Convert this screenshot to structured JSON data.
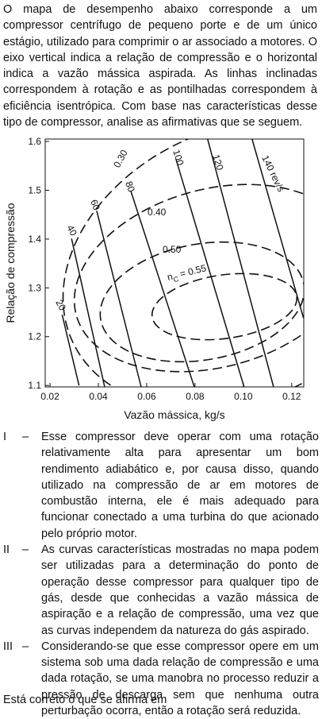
{
  "intro": "O mapa de desempenho abaixo corresponde a um compressor centrífugo de pequeno porte e de um único estágio, utilizado para comprimir o ar associado a motores. O eixo vertical indica a relação de compressão e o horizontal indica a vazão mássica aspirada. As linhas inclinadas correspondem à rotação e as pontilhadas correspondem à eficiência isentrópica. Com base nas características desse tipo de compressor, analise as afirmativas que se seguem.",
  "figure": {
    "x_label": "Vazão mássica, kg/s",
    "y_label": "Relação de compressão",
    "xlim": [
      0.018,
      0.125
    ],
    "ylim": [
      1.097,
      1.605
    ],
    "xticks": [
      0.02,
      0.04,
      0.06,
      0.08,
      {
        "value": 0.1,
        "label": "0.10"
      },
      0.12
    ],
    "yticks": [
      1.1,
      1.2,
      1.3,
      1.4,
      1.5,
      1.6
    ],
    "speed_lines": [
      {
        "label": "20",
        "x": [
          0.025,
          0.032
        ],
        "y": [
          1.245,
          1.1
        ]
      },
      {
        "label": "40",
        "x": [
          0.0289,
          0.0426
        ],
        "y": [
          1.401,
          1.097
        ]
      },
      {
        "label": "60",
        "x": [
          0.0393,
          0.0577
        ],
        "y": [
          1.458,
          1.097
        ]
      },
      {
        "label": "80",
        "x": [
          0.0534,
          0.0797
        ],
        "y": [
          1.499,
          1.097
        ]
      },
      {
        "label": "100",
        "x": [
          0.0721,
          0.1003
        ],
        "y": [
          1.564,
          1.097
        ]
      },
      {
        "label": "120",
        "x": [
          0.0852,
          0.1125
        ],
        "y": [
          1.605,
          1.097
        ]
      },
      {
        "label": "140 rev/s",
        "x": [
          0.1036,
          0.1249
        ],
        "y": [
          1.605,
          1.238
        ]
      }
    ],
    "efficiency_labels": [
      "0.30",
      "0.40",
      "0.50"
    ],
    "efficiency_peak": {
      "symbol": "n",
      "subscript": "C",
      "text": " = 0.55"
    }
  },
  "items": [
    {
      "number": "I",
      "dash": "–",
      "text": "Esse compressor deve operar com uma rotação relativamente alta para apresentar um bom rendimento adiabático e, por causa disso, quando utilizado na compressão de ar em motores de combustão interna, ele é mais adequado para funcionar conectado a uma turbina do que acionado pelo próprio motor."
    },
    {
      "number": "II",
      "dash": "–",
      "text": "As curvas características mostradas no mapa podem ser utilizadas para a determinação do ponto de operação desse compressor para qualquer tipo de gás, desde que conhecidas a vazão mássica de aspiração e a relação de compressão, uma vez que as curvas independem da natureza do gás aspirado."
    },
    {
      "number": "III",
      "dash": "–",
      "text": "Considerando-se que esse compressor opere em um sistema sob uma dada relação de compressão e uma dada rotação, se uma manobra no processo reduzir a pressão de descarga sem que nenhuma outra perturbação ocorra, então a rotação será reduzida."
    }
  ],
  "closing": "Está correto o que se afirma em"
}
